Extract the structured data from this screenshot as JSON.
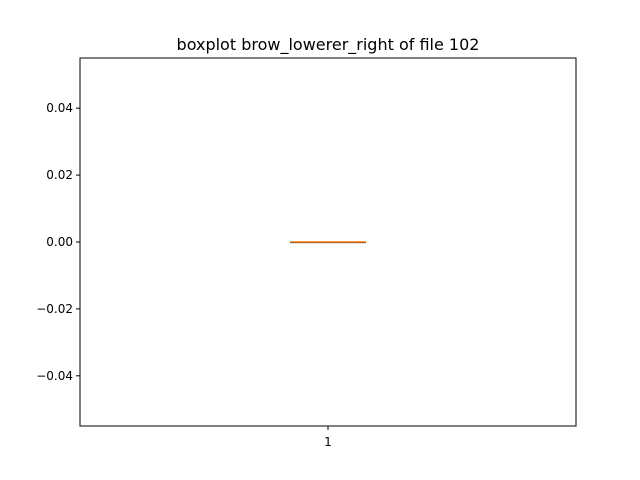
{
  "chart_data": {
    "type": "boxplot",
    "title": "boxplot brow_lowerer_right of file 102",
    "xlabel": "",
    "ylabel": "",
    "categories": [
      "1"
    ],
    "ylim": [
      -0.055,
      0.055
    ],
    "yticks": [
      -0.04,
      -0.02,
      0.0,
      0.02,
      0.04
    ],
    "ytick_labels": [
      "−0.04",
      "−0.02",
      "0.00",
      "0.02",
      "0.04"
    ],
    "boxes": [
      {
        "category": "1",
        "min": 0.0,
        "q1": 0.0,
        "median": 0.0,
        "q3": 0.0,
        "max": 0.0
      }
    ],
    "grid": false,
    "colors": {
      "box": "#000000",
      "median": "#ff7f0e",
      "frame": "#000000"
    }
  }
}
